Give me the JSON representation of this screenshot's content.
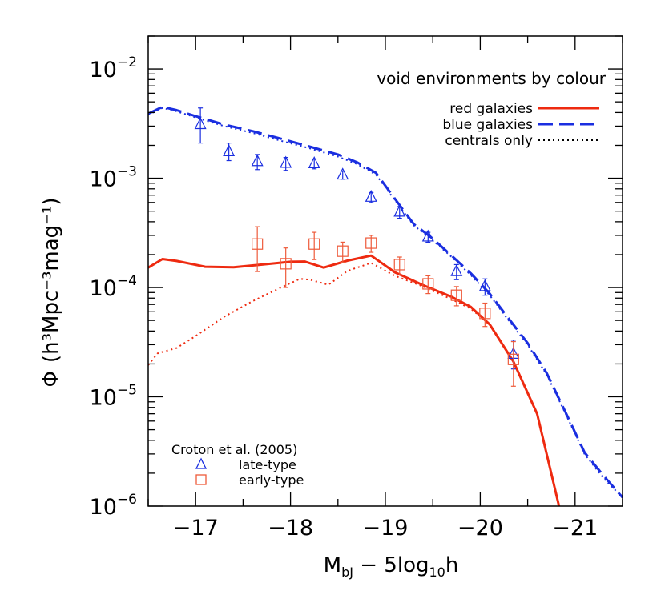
{
  "chart_data": {
    "type": "line",
    "title": "void environments by colour",
    "xlabel": {
      "main": "M",
      "sub": "bJ",
      "rest": " − 5log",
      "sub2": "10",
      "tail": "h"
    },
    "ylabel": {
      "phi": "Φ",
      "text": "(h³Mpc⁻³mag⁻¹)"
    },
    "xlim": [
      -16.5,
      -21.5
    ],
    "ylim": [
      1e-06,
      0.02
    ],
    "yscale": "log",
    "x_ticks": [
      -17,
      -18,
      -19,
      -20,
      -21
    ],
    "x_tick_labels": [
      "−17",
      "−18",
      "−19",
      "−20",
      "−21"
    ],
    "y_ticks": [
      {
        "value": 0.01,
        "base": "10",
        "exp": "−2"
      },
      {
        "value": 0.001,
        "base": "10",
        "exp": "−3"
      },
      {
        "value": 0.0001,
        "base": "10",
        "exp": "−4"
      },
      {
        "value": 1e-05,
        "base": "10",
        "exp": "−5"
      },
      {
        "value": 1e-06,
        "base": "10",
        "exp": "−6"
      }
    ],
    "series": [
      {
        "name": "red galaxies",
        "color": "#ee2a10",
        "style": "solid",
        "x": [
          -16.5,
          -16.65,
          -16.8,
          -17.1,
          -17.4,
          -17.7,
          -18.0,
          -18.15,
          -18.35,
          -18.6,
          -18.85,
          -19.1,
          -19.4,
          -19.7,
          -19.9,
          -20.1,
          -20.35,
          -20.6,
          -20.85
        ],
        "y": [
          0.000152,
          0.000182,
          0.000175,
          0.000155,
          0.000153,
          0.000162,
          0.000172,
          0.000173,
          0.000152,
          0.000176,
          0.000196,
          0.000138,
          0.000105,
          8.2e-05,
          6.65e-05,
          4.6e-05,
          2.1e-05,
          7e-06,
          8.5e-07
        ]
      },
      {
        "name": "blue galaxies",
        "color": "#1a2ee0",
        "style": "dashed",
        "x": [
          -16.5,
          -16.65,
          -16.8,
          -17.0,
          -17.3,
          -17.6,
          -17.9,
          -18.2,
          -18.5,
          -18.7,
          -18.9,
          -19.1,
          -19.3,
          -19.5,
          -19.7,
          -19.9,
          -20.1,
          -20.3,
          -20.5,
          -20.7,
          -20.9,
          -21.1,
          -21.3,
          -21.5
        ],
        "y": [
          0.0039,
          0.0045,
          0.0042,
          0.0037,
          0.0031,
          0.0027,
          0.0023,
          0.00195,
          0.00165,
          0.0014,
          0.00112,
          0.00065,
          0.00038,
          0.00028,
          0.000195,
          0.000135,
          8.8e-05,
          5.2e-05,
          3.1e-05,
          1.65e-05,
          7.2e-06,
          3.1e-06,
          1.9e-06,
          1.2e-06
        ]
      },
      {
        "name": "centrals only",
        "color": "#1a2ee0",
        "style": "dotted",
        "x": [
          -16.5,
          -16.65,
          -16.8,
          -17.0,
          -17.3,
          -17.6,
          -17.9,
          -18.2,
          -18.5,
          -18.7,
          -18.9,
          -19.1,
          -19.3,
          -19.5,
          -19.7,
          -19.9,
          -20.1,
          -20.3,
          -20.5,
          -20.7,
          -20.9,
          -21.1,
          -21.3,
          -21.5
        ],
        "y": [
          0.0038,
          0.0044,
          0.0041,
          0.0036,
          0.003,
          0.0026,
          0.0022,
          0.00188,
          0.00158,
          0.00135,
          0.00108,
          0.00063,
          0.00037,
          0.00027,
          0.00019,
          0.00013,
          8.5e-05,
          5e-05,
          3e-05,
          1.6e-05,
          7e-06,
          3e-06,
          1.8e-06,
          1.2e-06
        ]
      },
      {
        "name": "red centrals",
        "color": "#ee2a10",
        "style": "dotted",
        "x": [
          -16.5,
          -16.6,
          -16.8,
          -17.0,
          -17.3,
          -17.6,
          -17.9,
          -18.1,
          -18.2,
          -18.4,
          -18.6,
          -18.85,
          -19.1,
          -19.4,
          -19.7,
          -19.9,
          -20.1
        ],
        "y": [
          1.95e-05,
          2.5e-05,
          2.8e-05,
          3.6e-05,
          5.4e-05,
          7.5e-05,
          0.0001,
          0.00012,
          0.000118,
          0.000106,
          0.000142,
          0.000168,
          0.000128,
          0.000102,
          7.8e-05,
          6.4e-05,
          4.6e-05
        ]
      }
    ],
    "points": [
      {
        "name": "late-type",
        "marker": "triangle",
        "color": "#1a2ee0",
        "x": [
          -17.05,
          -17.35,
          -17.65,
          -17.95,
          -18.25,
          -18.55,
          -18.85,
          -19.15,
          -19.45,
          -19.75,
          -20.05,
          -20.35
        ],
        "y": [
          0.0031,
          0.00175,
          0.00142,
          0.00137,
          0.00136,
          0.00107,
          0.00067,
          0.00049,
          0.00029,
          0.00014,
          0.000102,
          2.45e-05
        ],
        "ylo": [
          0.0021,
          0.00145,
          0.0012,
          0.00118,
          0.00122,
          0.00098,
          0.0006,
          0.00043,
          0.00026,
          0.000118,
          8.5e-05,
          1.8e-05
        ],
        "yhi": [
          0.0044,
          0.0021,
          0.00165,
          0.00155,
          0.0015,
          0.00116,
          0.00074,
          0.00055,
          0.00032,
          0.000162,
          0.00012,
          3.3e-05
        ]
      },
      {
        "name": "early-type",
        "marker": "square",
        "color": "#ee5a3a",
        "x": [
          -17.65,
          -17.95,
          -18.25,
          -18.55,
          -18.85,
          -19.15,
          -19.45,
          -19.75,
          -20.05,
          -20.35
        ],
        "y": [
          0.00025,
          0.000165,
          0.00025,
          0.000215,
          0.000255,
          0.000162,
          0.000108,
          8.5e-05,
          5.8e-05,
          2.2e-05
        ],
        "ylo": [
          0.00014,
          0.0001,
          0.00018,
          0.00017,
          0.00021,
          0.00013,
          8.8e-05,
          6.8e-05,
          4.4e-05,
          1.25e-05
        ],
        "yhi": [
          0.00036,
          0.00023,
          0.00032,
          0.00026,
          0.0003,
          0.00019,
          0.000128,
          0.000102,
          7.2e-05,
          3.2e-05
        ]
      }
    ],
    "legend": {
      "position": "top-right",
      "title": "void environments by colour",
      "entries": [
        {
          "label": "red galaxies",
          "color": "#ee2a10",
          "style": "solid"
        },
        {
          "label": "blue galaxies",
          "color": "#1a2ee0",
          "style": "dashed"
        },
        {
          "label": "centrals only",
          "color": "#000000",
          "style": "dotted"
        }
      ]
    },
    "points_legend": {
      "position": "bottom-left",
      "title": "Croton et al. (2005)",
      "entries": [
        {
          "label": "late-type",
          "marker": "triangle",
          "color": "#1a2ee0"
        },
        {
          "label": "early-type",
          "marker": "square",
          "color": "#ee5a3a"
        }
      ]
    },
    "grid": false
  }
}
